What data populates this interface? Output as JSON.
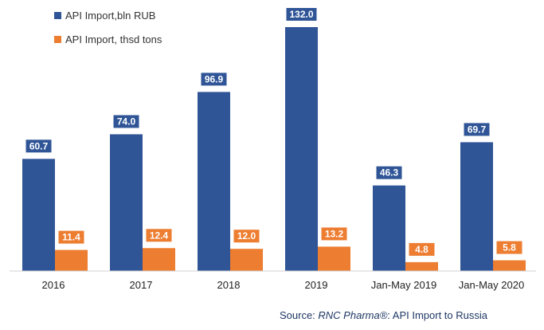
{
  "chart_data": {
    "type": "bar",
    "categories": [
      "2016",
      "2017",
      "2018",
      "2019",
      "Jan-May 2019",
      "Jan-May 2020"
    ],
    "series": [
      {
        "name": "API Import,bln RUB",
        "color": "#2f5597",
        "values": [
          60.7,
          74.0,
          96.9,
          132.0,
          46.3,
          69.7
        ],
        "labels": [
          "60.7",
          "74.0",
          "96.9",
          "132.0",
          "46.3",
          "69.7"
        ]
      },
      {
        "name": "API Import, thsd tons",
        "color": "#ed7d31",
        "values": [
          11.4,
          12.4,
          12.0,
          13.2,
          4.8,
          5.8
        ],
        "labels": [
          "11.4",
          "12.4",
          "12.0",
          "13.2",
          "4.8",
          "5.8"
        ]
      }
    ],
    "ylim": [
      0,
      135
    ],
    "grid": false,
    "legend_position": "top-left",
    "source": {
      "prefix": "Source: ",
      "brand": "RNC Pharma®",
      "suffix": ": API Import to Russia"
    }
  }
}
